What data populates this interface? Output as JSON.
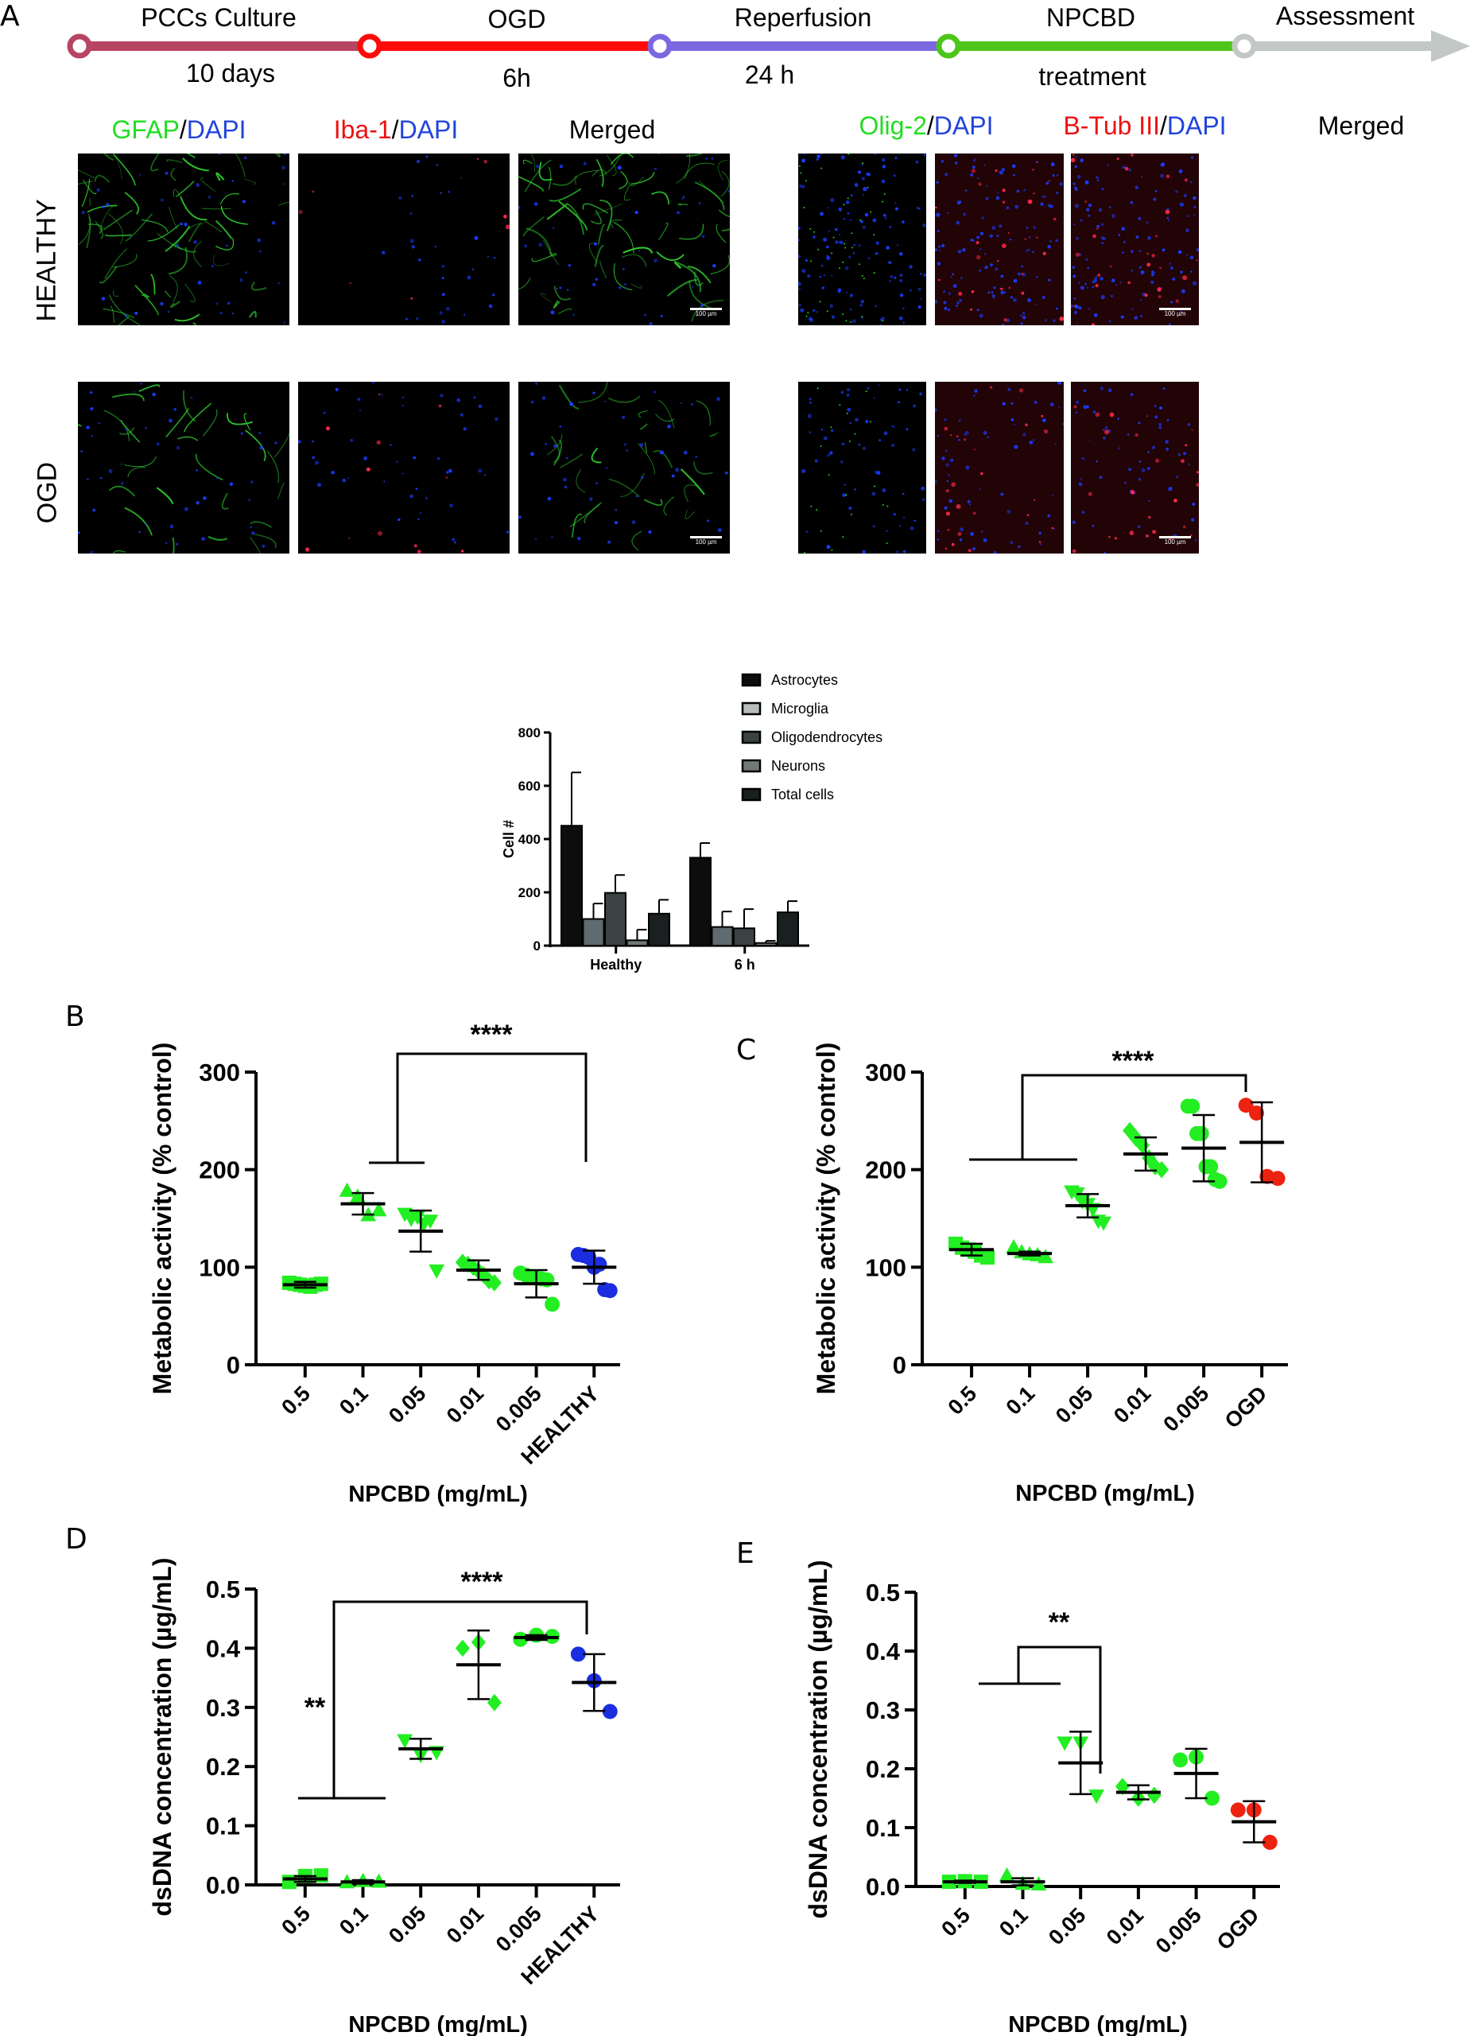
{
  "panel_letters": {
    "a": "A",
    "b": "B",
    "c": "C",
    "d": "D",
    "e": "E"
  },
  "timeline": {
    "stages": [
      {
        "top": "PCCs Culture",
        "bottom": "10 days",
        "color": "#b84464"
      },
      {
        "top": "OGD",
        "bottom": "6h",
        "color": "#ff0a0a"
      },
      {
        "top": "Reperfusion",
        "bottom": "24 h",
        "color": "#7b68e0"
      },
      {
        "top": "NPCBD",
        "bottom": "treatment",
        "color": "#4ec51a"
      },
      {
        "top": "Assessment",
        "bottom": "",
        "color": "#c2c8c6"
      }
    ]
  },
  "micrographs": {
    "left_headers": [
      {
        "parts": [
          {
            "t": "GFAP",
            "c": "#22dd22"
          },
          {
            "t": "/",
            "c": "#000"
          },
          {
            "t": "DAPI",
            "c": "#2244dd"
          }
        ]
      },
      {
        "parts": [
          {
            "t": "Iba-1",
            "c": "#ee1111"
          },
          {
            "t": "/",
            "c": "#000"
          },
          {
            "t": "DAPI",
            "c": "#2244dd"
          }
        ]
      },
      {
        "parts": [
          {
            "t": "Merged",
            "c": "#000"
          }
        ]
      }
    ],
    "right_headers": [
      {
        "parts": [
          {
            "t": "Olig-2",
            "c": "#22dd22"
          },
          {
            "t": "/",
            "c": "#000"
          },
          {
            "t": "DAPI",
            "c": "#2244dd"
          }
        ]
      },
      {
        "parts": [
          {
            "t": "B-Tub III",
            "c": "#ee1111"
          },
          {
            "t": "/",
            "c": "#000"
          },
          {
            "t": "DAPI",
            "c": "#2244dd"
          }
        ]
      },
      {
        "parts": [
          {
            "t": "Merged",
            "c": "#000"
          }
        ]
      }
    ],
    "rows": [
      "HEALTHY",
      "OGD"
    ],
    "scale_bar": "100 µm"
  },
  "chart_data": [
    {
      "id": "A-bar",
      "type": "bar",
      "title": "",
      "xlabel": "",
      "ylabel": "Cell #",
      "ylim": [
        0,
        800
      ],
      "yticks": [
        0,
        200,
        400,
        600,
        800
      ],
      "categories": [
        "Healthy",
        "6 h"
      ],
      "legend_position": "top-right",
      "series": [
        {
          "name": "Astrocytes",
          "color": "#0d0d0d",
          "values": [
            450,
            330
          ],
          "errors": [
            200,
            55
          ]
        },
        {
          "name": "Microglia",
          "color": "#5f6b70",
          "values": [
            100,
            70
          ],
          "errors": [
            58,
            58
          ]
        },
        {
          "name": "Oligodendrocytes",
          "color": "#3a4242",
          "values": [
            198,
            65
          ],
          "errors": [
            67,
            72
          ]
        },
        {
          "name": "Neurons",
          "color": "#707878",
          "values": [
            20,
            10
          ],
          "errors": [
            40,
            8
          ]
        },
        {
          "name": "Total cells",
          "color": "#1a1f1f",
          "values": [
            120,
            125
          ],
          "errors": [
            52,
            42
          ]
        }
      ]
    },
    {
      "id": "B",
      "type": "scatter",
      "title": "",
      "xlabel": "NPCBD (mg/mL)",
      "ylabel": "Metabolic activity (% control)",
      "ylim": [
        0,
        300
      ],
      "yticks": [
        0,
        100,
        200,
        300
      ],
      "categories": [
        "0.5",
        "0.1",
        "0.05",
        "0.01",
        "0.005",
        "HEALTHY"
      ],
      "series": [
        {
          "name": "0.5",
          "marker": "square",
          "color": "#22ee22",
          "mean": 82,
          "sd": 3,
          "points": [
            84,
            83,
            82,
            81,
            80,
            82,
            83
          ]
        },
        {
          "name": "0.1",
          "marker": "triangle-up",
          "color": "#22ee22",
          "mean": 165,
          "sd": 11,
          "points": [
            178,
            172,
            153,
            158
          ]
        },
        {
          "name": "0.05",
          "marker": "triangle-down",
          "color": "#22ee22",
          "mean": 137,
          "sd": 21,
          "points": [
            155,
            150,
            152,
            145,
            148,
            97
          ]
        },
        {
          "name": "0.01",
          "marker": "diamond",
          "color": "#22ee22",
          "mean": 97,
          "sd": 10,
          "points": [
            105,
            103,
            100,
            96,
            92,
            86,
            84
          ]
        },
        {
          "name": "0.005",
          "marker": "circle",
          "color": "#22ee22",
          "mean": 83,
          "sd": 14,
          "points": [
            94,
            92,
            90,
            89,
            88,
            87,
            62
          ]
        },
        {
          "name": "HEALTHY",
          "marker": "circle",
          "color": "#1a2ee0",
          "mean": 100,
          "sd": 17,
          "points": [
            113,
            112,
            110,
            100,
            103,
            77,
            76
          ]
        }
      ],
      "significance": [
        {
          "label": "****",
          "from": [
            "0.1",
            "0.05"
          ],
          "to": "HEALTHY"
        }
      ]
    },
    {
      "id": "C",
      "type": "scatter",
      "title": "",
      "xlabel": "NPCBD (mg/mL)",
      "ylabel": "Metabolic activity (% control)",
      "ylim": [
        0,
        300
      ],
      "yticks": [
        0,
        100,
        200,
        300
      ],
      "categories": [
        "0.5",
        "0.1",
        "0.05",
        "0.01",
        "0.005",
        "OGD"
      ],
      "series": [
        {
          "name": "0.5",
          "marker": "square",
          "color": "#22ee22",
          "mean": 118,
          "sd": 6,
          "points": [
            124,
            120,
            118,
            116,
            112,
            110
          ]
        },
        {
          "name": "0.1",
          "marker": "triangle-up",
          "color": "#22ee22",
          "mean": 114,
          "sd": 2,
          "points": [
            120,
            115,
            113,
            112,
            110
          ]
        },
        {
          "name": "0.05",
          "marker": "triangle-down",
          "color": "#22ee22",
          "mean": 163,
          "sd": 12,
          "points": [
            178,
            176,
            168,
            165,
            160,
            148,
            146
          ]
        },
        {
          "name": "0.01",
          "marker": "diamond",
          "color": "#22ee22",
          "mean": 216,
          "sd": 17,
          "points": [
            240,
            232,
            225,
            212,
            203,
            200
          ]
        },
        {
          "name": "0.005",
          "marker": "circle",
          "color": "#22ee22",
          "mean": 222,
          "sd": 34,
          "points": [
            265,
            265,
            237,
            237,
            203,
            203,
            190,
            188
          ]
        },
        {
          "name": "OGD",
          "marker": "circle",
          "color": "#ee2211",
          "mean": 228,
          "sd": 41,
          "points": [
            266,
            258,
            193,
            191
          ]
        }
      ],
      "significance": [
        {
          "label": "****",
          "from": [
            "0.5",
            "0.1",
            "0.05"
          ],
          "to": "OGD"
        }
      ]
    },
    {
      "id": "D",
      "type": "scatter",
      "title": "",
      "xlabel": "NPCBD (mg/mL)",
      "ylabel": "dsDNA concentration (µg/mL)",
      "ylim": [
        0,
        0.5
      ],
      "yticks": [
        0.0,
        0.1,
        0.2,
        0.3,
        0.4,
        0.5
      ],
      "categories": [
        "0.5",
        "0.1",
        "0.05",
        "0.01",
        "0.005",
        "HEALTHY"
      ],
      "series": [
        {
          "name": "0.5",
          "marker": "square",
          "color": "#22ee22",
          "mean": 0.01,
          "sd": 0.005,
          "points": [
            0.005,
            0.015,
            0.016
          ]
        },
        {
          "name": "0.1",
          "marker": "triangle-up",
          "color": "#22ee22",
          "mean": 0.005,
          "sd": 0.003,
          "points": [
            0.004,
            0.006,
            0.005
          ]
        },
        {
          "name": "0.05",
          "marker": "triangle-down",
          "color": "#22ee22",
          "mean": 0.23,
          "sd": 0.017,
          "points": [
            0.245,
            0.22,
            0.225
          ]
        },
        {
          "name": "0.01",
          "marker": "diamond",
          "color": "#22ee22",
          "mean": 0.372,
          "sd": 0.058,
          "points": [
            0.4,
            0.41,
            0.308
          ]
        },
        {
          "name": "0.005",
          "marker": "circle",
          "color": "#22ee22",
          "mean": 0.418,
          "sd": 0.004,
          "points": [
            0.415,
            0.422,
            0.42
          ]
        },
        {
          "name": "HEALTHY",
          "marker": "circle",
          "color": "#1a2ee0",
          "mean": 0.342,
          "sd": 0.048,
          "points": [
            0.39,
            0.345,
            0.293
          ]
        }
      ],
      "significance": [
        {
          "label": "****",
          "from": [
            "0.5",
            "0.1"
          ],
          "to": "HEALTHY"
        },
        {
          "label": "**",
          "at": "0.05"
        }
      ]
    },
    {
      "id": "E",
      "type": "scatter",
      "title": "",
      "xlabel": "NPCBD (mg/mL)",
      "ylabel": "dsDNA concentration (µg/mL)",
      "ylim": [
        0,
        0.5
      ],
      "yticks": [
        0.0,
        0.1,
        0.2,
        0.3,
        0.4,
        0.5
      ],
      "categories": [
        "0.5",
        "0.1",
        "0.05",
        "0.01",
        "0.005",
        "OGD"
      ],
      "series": [
        {
          "name": "0.5",
          "marker": "square",
          "color": "#22ee22",
          "mean": 0.008,
          "sd": 0.002,
          "points": [
            0.008,
            0.009,
            0.008
          ]
        },
        {
          "name": "0.1",
          "marker": "triangle-up",
          "color": "#22ee22",
          "mean": 0.008,
          "sd": 0.006,
          "points": [
            0.018,
            0.004,
            0.003
          ]
        },
        {
          "name": "0.05",
          "marker": "triangle-down",
          "color": "#22ee22",
          "mean": 0.21,
          "sd": 0.053,
          "points": [
            0.245,
            0.245,
            0.155
          ]
        },
        {
          "name": "0.01",
          "marker": "diamond",
          "color": "#22ee22",
          "mean": 0.16,
          "sd": 0.012,
          "points": [
            0.17,
            0.15,
            0.155
          ]
        },
        {
          "name": "0.005",
          "marker": "circle",
          "color": "#22ee22",
          "mean": 0.192,
          "sd": 0.042,
          "points": [
            0.215,
            0.22,
            0.15
          ]
        },
        {
          "name": "OGD",
          "marker": "circle",
          "color": "#ee2211",
          "mean": 0.11,
          "sd": 0.035,
          "points": [
            0.13,
            0.13,
            0.075
          ]
        }
      ],
      "significance": [
        {
          "label": "**",
          "from": [
            "0.05",
            "0.01",
            "0.005"
          ],
          "to": "OGD"
        }
      ]
    }
  ]
}
